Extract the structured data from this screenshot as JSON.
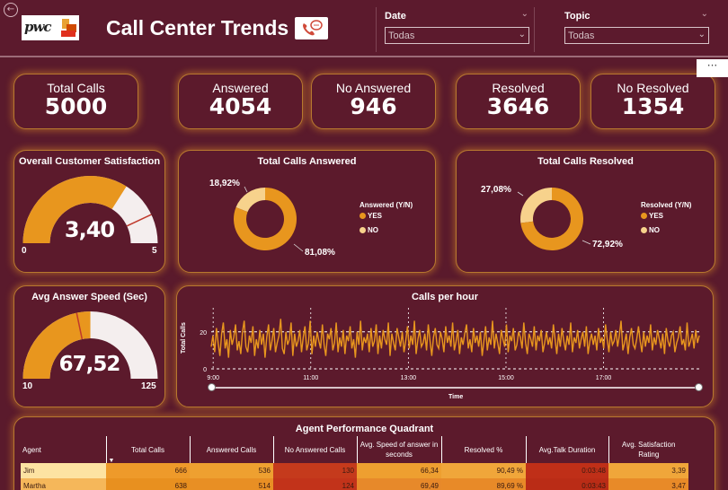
{
  "header": {
    "back_icon": "back-arrow-icon",
    "logo_text": "pwc",
    "title": "Call Center Trends",
    "title_icon": "phone-chat-icon"
  },
  "filters": {
    "date": {
      "label": "Date",
      "value": "Todas"
    },
    "topic": {
      "label": "Topic",
      "value": "Todas"
    }
  },
  "more_options_icon": "more-options-icon",
  "kpis": [
    {
      "label": "Total Calls",
      "value": "5000"
    },
    {
      "label": "Answered",
      "value": "4054"
    },
    {
      "label": "No Answered",
      "value": "946"
    },
    {
      "label": "Resolved",
      "value": "3646"
    },
    {
      "label": "No Resolved",
      "value": "1354"
    }
  ],
  "satisfaction_gauge": {
    "title": "Overall Customer Satisfaction",
    "value": "3,40",
    "numeric_value": 3.4,
    "min": "0",
    "max": "5",
    "target": 4.3
  },
  "answer_speed_gauge": {
    "title": "Avg Answer Speed (Sec)",
    "value": "67,52",
    "numeric_value": 67.52,
    "min": "10",
    "max": "125",
    "target": 60
  },
  "answered_donut": {
    "title": "Total Calls Answered",
    "legend_title": "Answered (Y/N)",
    "slices": [
      {
        "label": "YES",
        "percent": 81.08,
        "text": "81,08%",
        "color": "#e8961e"
      },
      {
        "label": "NO",
        "percent": 18.92,
        "text": "18,92%",
        "color": "#f7d28c"
      }
    ]
  },
  "resolved_donut": {
    "title": "Total Calls Resolved",
    "legend_title": "Resolved (Y/N)",
    "slices": [
      {
        "label": "YES",
        "percent": 72.92,
        "text": "72,92%",
        "color": "#e8961e"
      },
      {
        "label": "NO",
        "percent": 27.08,
        "text": "27,08%",
        "color": "#f7d28c"
      }
    ]
  },
  "chart_data": {
    "type": "line",
    "title": "Calls per hour",
    "xlabel": "Time",
    "ylabel": "Total Calls",
    "x_ticks": [
      "9:00",
      "11:00",
      "13:00",
      "15:00",
      "17:00"
    ],
    "y_ticks": [
      "0",
      "20"
    ],
    "ylim": [
      0,
      32
    ],
    "reference_lines": [
      0,
      20
    ],
    "series": [
      {
        "color": "#e8961e",
        "values": [
          12,
          18,
          9,
          22,
          14,
          7,
          19,
          25,
          11,
          16,
          6,
          21,
          13,
          17,
          24,
          10,
          15,
          8,
          20,
          26,
          12,
          9,
          18,
          14,
          23,
          7,
          16,
          11,
          21,
          13,
          19,
          6,
          17,
          24,
          10,
          15,
          22,
          9,
          14,
          18,
          27,
          11,
          8,
          20,
          13,
          16,
          25,
          7,
          19,
          12,
          15,
          21,
          9,
          17,
          23,
          10,
          14,
          26,
          8,
          18,
          12,
          20,
          15,
          11,
          24,
          13,
          7,
          19,
          16,
          22,
          10,
          14,
          25,
          9,
          17,
          12,
          21,
          8,
          18,
          15,
          23,
          11,
          16,
          6,
          20,
          13,
          26,
          10,
          17,
          14,
          19,
          9,
          22,
          12,
          15,
          24,
          8,
          18,
          11,
          21,
          16,
          13,
          25,
          7,
          19,
          14,
          10,
          22,
          17,
          12,
          20,
          9,
          15,
          23,
          11,
          18,
          13,
          26,
          8,
          16,
          21,
          12,
          14,
          19,
          10,
          24,
          15,
          7,
          17,
          22,
          13,
          11,
          20,
          16,
          9,
          23,
          14,
          18,
          12,
          25,
          10,
          15,
          21,
          8,
          17,
          13,
          19,
          24,
          11,
          16,
          9,
          22,
          14,
          18,
          12,
          20,
          7,
          15,
          23,
          10,
          17,
          13,
          26,
          11,
          19,
          14,
          8,
          21,
          16,
          12,
          24,
          9,
          18,
          15,
          22,
          10,
          13,
          20,
          17,
          11,
          25,
          14,
          8,
          19,
          16,
          12,
          23,
          10,
          18,
          15,
          21,
          9,
          14,
          20,
          13,
          17,
          11,
          24,
          16,
          8,
          19,
          12,
          22,
          15,
          10,
          18,
          13,
          25,
          9,
          17,
          14,
          21,
          11,
          16,
          20,
          12,
          23,
          8,
          15,
          19,
          13,
          18,
          10,
          22,
          14,
          17,
          11,
          24,
          16,
          9,
          20,
          13,
          15,
          21,
          12,
          18,
          26,
          10,
          14,
          19,
          8,
          17,
          22,
          13,
          11,
          16,
          23,
          15,
          9,
          20,
          12,
          18,
          14,
          24,
          10,
          17,
          13,
          21,
          16,
          11,
          19,
          8,
          22,
          15,
          12,
          18,
          20,
          9,
          14,
          17,
          23,
          13,
          16,
          10,
          25,
          12,
          15,
          19,
          11,
          21,
          14,
          18
        ]
      }
    ]
  },
  "agents_table": {
    "title": "Agent Performance Quadrant",
    "columns": [
      "Agent",
      "Total Calls",
      "Answered Calls",
      "No Answered Calls",
      "Avg. Speed of answer in seconds",
      "Resolved %",
      "Avg.Talk Duration",
      "Avg. Satisfaction Rating"
    ],
    "sort_icon": "sort-desc-icon",
    "rows": [
      [
        "Jim",
        "666",
        "536",
        "130",
        "66,34",
        "90,49 %",
        "0:03:48",
        "3,39"
      ],
      [
        "Martha",
        "638",
        "514",
        "124",
        "69,49",
        "89,69 %",
        "0:03:43",
        "3,47"
      ]
    ]
  }
}
